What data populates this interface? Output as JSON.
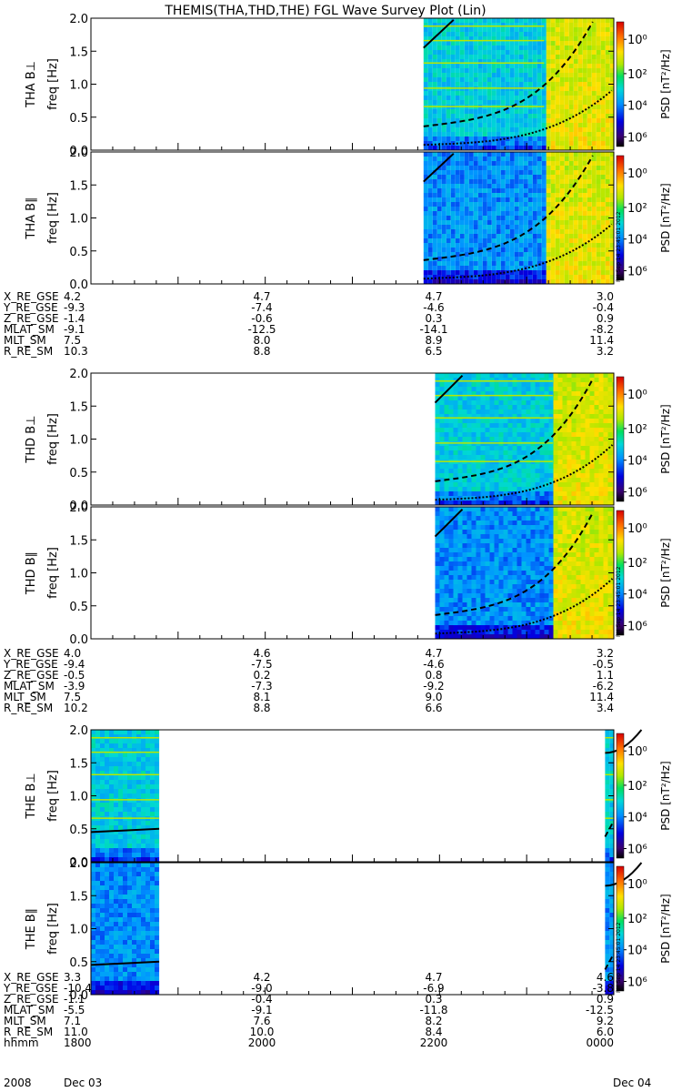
{
  "title": "THEMIS(THA,THD,THE) FGL Wave Survey Plot (Lin)",
  "colors": {
    "line": "#000000",
    "bg": "#ffffff"
  },
  "chart_data": [
    {
      "type": "heatmap",
      "panel_id": "tha-bperp",
      "label": "THA B⊥",
      "ylabel": "freq [Hz]",
      "ylim": [
        0,
        2.0
      ],
      "yticks": [
        "0.0",
        "0.5",
        "1.0",
        "1.5",
        "2.0"
      ],
      "xlim_hhmm": [
        1800,
        2400
      ],
      "colorbar_label": "PSD [nT²/Hz]",
      "colorbar_ticks": [
        "10⁶",
        "10⁴",
        "10²",
        "10⁰"
      ],
      "data_coverage_hhmm": [
        [
          2149,
          2400
        ]
      ],
      "saturated_from_hhmm": 2312
    },
    {
      "type": "heatmap",
      "panel_id": "tha-bpar",
      "label": "THA B∥",
      "ylabel": "freq [Hz]",
      "ylim": [
        0,
        2.0
      ],
      "yticks": [
        "0.0",
        "0.5",
        "1.0",
        "1.5",
        "2.0"
      ],
      "colorbar_label": "PSD [nT²/Hz]",
      "colorbar_ticks": [
        "10⁶",
        "10⁴",
        "10²",
        "10⁰"
      ],
      "stamp": "RH Sep 14 23:45:01 2012",
      "data_coverage_hhmm": [
        [
          2149,
          2400
        ]
      ],
      "saturated_from_hhmm": 2312
    },
    {
      "type": "heatmap",
      "panel_id": "thd-bperp",
      "label": "THD B⊥",
      "ylabel": "freq [Hz]",
      "ylim": [
        0,
        2.0
      ],
      "yticks": [
        "0.0",
        "0.5",
        "1.0",
        "1.5",
        "2.0"
      ],
      "colorbar_label": "PSD [nT²/Hz]",
      "colorbar_ticks": [
        "10⁶",
        "10⁴",
        "10²",
        "10⁰"
      ],
      "data_coverage_hhmm": [
        [
          2157,
          2400
        ]
      ],
      "saturated_from_hhmm": 2318
    },
    {
      "type": "heatmap",
      "panel_id": "thd-bpar",
      "label": "THD B∥",
      "ylabel": "freq [Hz]",
      "ylim": [
        0,
        2.0
      ],
      "yticks": [
        "0.0",
        "0.5",
        "1.0",
        "1.5",
        "2.0"
      ],
      "colorbar_label": "PSD [nT²/Hz]",
      "colorbar_ticks": [
        "10⁶",
        "10⁴",
        "10²",
        "10⁰"
      ],
      "stamp": "RH Sep 14 23:45:01 2012",
      "data_coverage_hhmm": [
        [
          2157,
          2400
        ]
      ],
      "saturated_from_hhmm": 2318
    },
    {
      "type": "heatmap",
      "panel_id": "the-bperp",
      "label": "THE B⊥",
      "ylabel": "freq [Hz]",
      "ylim": [
        0,
        2.0
      ],
      "yticks": [
        "0.0",
        "0.5",
        "1.0",
        "1.5",
        "2.0"
      ],
      "colorbar_label": "PSD [nT²/Hz]",
      "colorbar_ticks": [
        "10⁶",
        "10⁴",
        "10²",
        "10⁰"
      ],
      "data_coverage_hhmm": [
        [
          1800,
          1847
        ],
        [
          2354,
          2400
        ]
      ]
    },
    {
      "type": "heatmap",
      "panel_id": "the-bpar",
      "label": "THE B∥",
      "ylabel": "freq [Hz]",
      "ylim": [
        0,
        2.0
      ],
      "yticks": [
        "0.0",
        "0.5",
        "1.0",
        "1.5",
        "2.0"
      ],
      "colorbar_label": "PSD [nT²/Hz]",
      "colorbar_ticks": [
        "10⁶",
        "10⁴",
        "10²",
        "10⁰"
      ],
      "stamp": "RH Sep 14 23:45:01 2012",
      "data_coverage_hhmm": [
        [
          1800,
          1847
        ],
        [
          2354,
          2400
        ]
      ]
    }
  ],
  "ephemeris_tables": [
    {
      "probe": "THA",
      "rows": [
        {
          "label": "X_RE_GSE",
          "values": [
            "4.2",
            "4.7",
            "4.7",
            "3.0"
          ]
        },
        {
          "label": "Y_RE_GSE",
          "values": [
            "-9.3",
            "-7.4",
            "-4.6",
            "-0.4"
          ]
        },
        {
          "label": "Z_RE_GSE",
          "values": [
            "-1.4",
            "-0.6",
            "0.3",
            "0.9"
          ]
        },
        {
          "label": "MLAT_SM",
          "values": [
            "-9.1",
            "-12.5",
            "-14.1",
            "-8.2"
          ]
        },
        {
          "label": "MLT_SM",
          "values": [
            "7.5",
            "8.0",
            "8.9",
            "11.4"
          ]
        },
        {
          "label": "R_RE_SM",
          "values": [
            "10.3",
            "8.8",
            "6.5",
            "3.2"
          ]
        }
      ]
    },
    {
      "probe": "THD",
      "rows": [
        {
          "label": "X_RE_GSE",
          "values": [
            "4.0",
            "4.6",
            "4.7",
            "3.2"
          ]
        },
        {
          "label": "Y_RE_GSE",
          "values": [
            "-9.4",
            "-7.5",
            "-4.6",
            "-0.5"
          ]
        },
        {
          "label": "Z_RE_GSE",
          "values": [
            "-0.5",
            "0.2",
            "0.8",
            "1.1"
          ]
        },
        {
          "label": "MLAT_SM",
          "values": [
            "-3.9",
            "-7.3",
            "-9.2",
            "-6.2"
          ]
        },
        {
          "label": "MLT_SM",
          "values": [
            "7.5",
            "8.1",
            "9.0",
            "11.4"
          ]
        },
        {
          "label": "R_RE_SM",
          "values": [
            "10.2",
            "8.8",
            "6.6",
            "3.4"
          ]
        }
      ]
    },
    {
      "probe": "THE",
      "rows": [
        {
          "label": "X_RE_GSE",
          "values": [
            "3.3",
            "4.2",
            "4.7",
            "4.6"
          ]
        },
        {
          "label": "Y_RE_GSE",
          "values": [
            "-10.4",
            "-9.0",
            "-6.9",
            "-3.8"
          ]
        },
        {
          "label": "Z_RE_GSE",
          "values": [
            "-1.1",
            "-0.4",
            "0.3",
            "0.9"
          ]
        },
        {
          "label": "MLAT_SM",
          "values": [
            "-5.5",
            "-9.1",
            "-11.8",
            "-12.5"
          ]
        },
        {
          "label": "MLT_SM",
          "values": [
            "7.1",
            "7.6",
            "8.2",
            "9.2"
          ]
        },
        {
          "label": "R_RE_SM",
          "values": [
            "11.0",
            "10.0",
            "8.4",
            "6.0"
          ]
        },
        {
          "label": "hhmm",
          "values": [
            "1800",
            "2000",
            "2200",
            "0000"
          ]
        }
      ]
    }
  ],
  "time_axis": {
    "date_start_year": "2008",
    "date_start_day": "Dec 03",
    "date_end_day": "Dec 04"
  }
}
